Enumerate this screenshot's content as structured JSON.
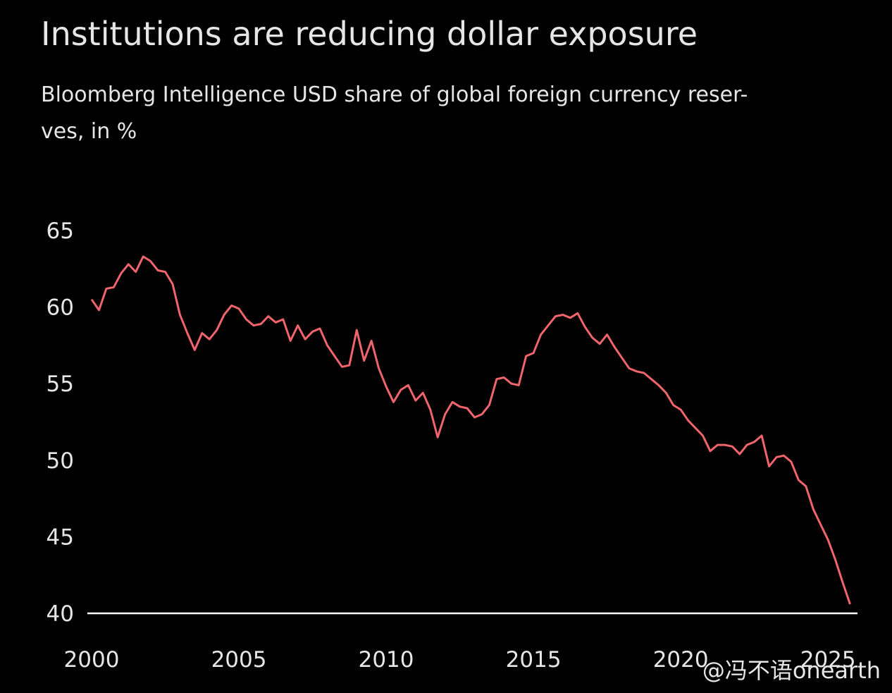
{
  "chart_data": {
    "type": "line",
    "title": "Institutions are reducing dollar exposure",
    "subtitle": [
      "Bloomberg Intelligence USD share of global foreign currency reser-",
      "ves, in %"
    ],
    "watermark": "@冯不语onearth",
    "x": [
      2000.0,
      2000.25,
      2000.5,
      2000.75,
      2001.0,
      2001.25,
      2001.5,
      2001.75,
      2002.0,
      2002.25,
      2002.5,
      2002.75,
      2003.0,
      2003.25,
      2003.5,
      2003.75,
      2004.0,
      2004.25,
      2004.5,
      2004.75,
      2005.0,
      2005.25,
      2005.5,
      2005.75,
      2006.0,
      2006.25,
      2006.5,
      2006.75,
      2007.0,
      2007.25,
      2007.5,
      2007.75,
      2008.0,
      2008.25,
      2008.5,
      2008.75,
      2009.0,
      2009.25,
      2009.5,
      2009.75,
      2010.0,
      2010.25,
      2010.5,
      2010.75,
      2011.0,
      2011.25,
      2011.5,
      2011.75,
      2012.0,
      2012.25,
      2012.5,
      2012.75,
      2013.0,
      2013.25,
      2013.5,
      2013.75,
      2014.0,
      2014.25,
      2014.5,
      2014.75,
      2015.0,
      2015.25,
      2015.5,
      2015.75,
      2016.0,
      2016.25,
      2016.5,
      2016.75,
      2017.0,
      2017.25,
      2017.5,
      2017.75,
      2018.0,
      2018.25,
      2018.5,
      2018.75,
      2019.0,
      2019.25,
      2019.5,
      2019.75,
      2020.0,
      2020.25,
      2020.5,
      2020.75,
      2021.0,
      2021.25,
      2021.5,
      2021.75,
      2022.0,
      2022.25,
      2022.5,
      2022.75,
      2023.0,
      2023.25,
      2023.5,
      2023.75,
      2024.0,
      2024.25,
      2024.5,
      2024.75,
      2025.0,
      2025.25,
      2025.5,
      2025.75
    ],
    "series": [
      {
        "name": "USD share",
        "color": "#f0646c",
        "values": [
          60.5,
          59.8,
          61.2,
          61.3,
          62.2,
          62.8,
          62.3,
          63.3,
          63.0,
          62.4,
          62.3,
          61.5,
          59.5,
          58.3,
          57.2,
          58.3,
          57.9,
          58.5,
          59.5,
          60.1,
          59.9,
          59.2,
          58.8,
          58.9,
          59.4,
          59.0,
          59.2,
          57.8,
          58.8,
          57.9,
          58.4,
          58.6,
          57.5,
          56.8,
          56.1,
          56.2,
          58.5,
          56.5,
          57.8,
          56.0,
          54.8,
          53.8,
          54.6,
          54.9,
          53.9,
          54.4,
          53.3,
          51.5,
          53.0,
          53.8,
          53.5,
          53.4,
          52.8,
          53.0,
          53.6,
          55.3,
          55.4,
          55.0,
          54.9,
          56.8,
          57.0,
          58.2,
          58.8,
          59.4,
          59.5,
          59.3,
          59.6,
          58.7,
          58.0,
          57.6,
          58.2,
          57.4,
          56.7,
          56.0,
          55.8,
          55.7,
          55.3,
          54.9,
          54.4,
          53.6,
          53.3,
          52.6,
          52.1,
          51.6,
          50.6,
          51.0,
          51.0,
          50.9,
          50.4,
          51.0,
          51.2,
          51.6,
          49.6,
          50.2,
          50.3,
          49.9,
          48.7,
          48.3,
          46.8,
          45.8,
          44.8,
          43.5,
          42.0,
          40.6
        ]
      }
    ],
    "xlim": [
      2000,
      2026
    ],
    "xticks": [
      2000,
      2005,
      2010,
      2015,
      2020,
      2025
    ],
    "ylim": [
      40,
      65
    ],
    "yticks": [
      40,
      45,
      50,
      55,
      60,
      65
    ],
    "grid": false
  }
}
